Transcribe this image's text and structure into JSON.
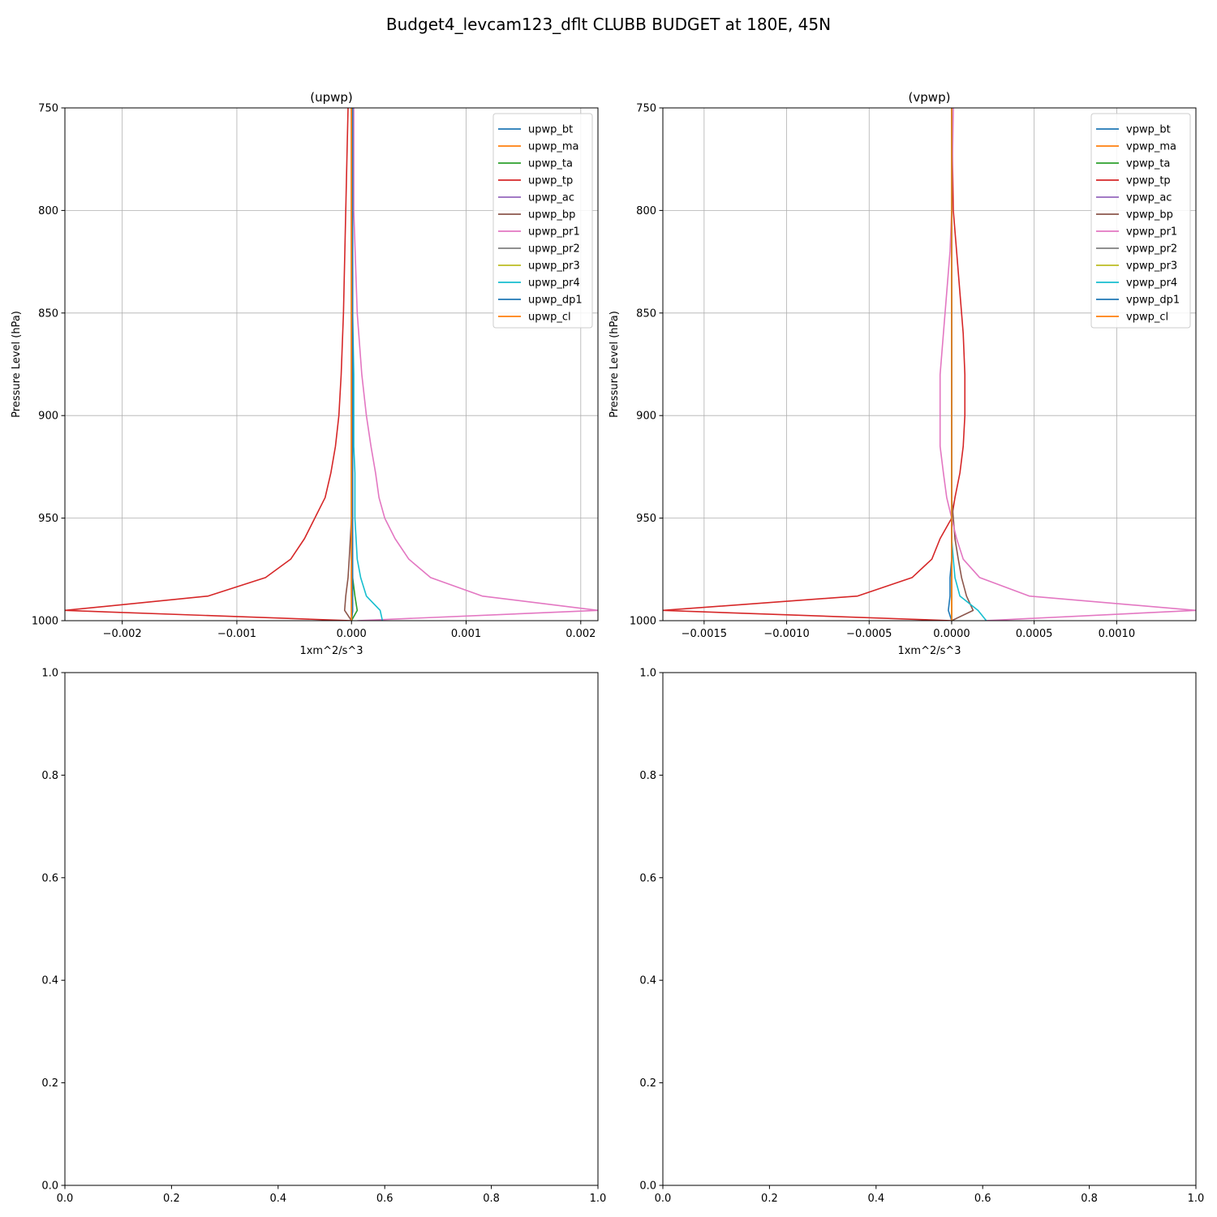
{
  "figure": {
    "title": "Budget4_levcam123_dflt CLUBB BUDGET at 180E, 45N"
  },
  "colors": [
    "#1f77b4",
    "#ff7f0e",
    "#2ca02c",
    "#d62728",
    "#9467bd",
    "#8c564b",
    "#e377c2",
    "#7f7f7f",
    "#bcbd22",
    "#17becf",
    "#1f77b4",
    "#ff7f0e"
  ],
  "chart_data": [
    {
      "type": "line",
      "title": "(upwp)",
      "xlabel": "1xm^2/s^3",
      "ylabel": "Pressure Level (hPa)",
      "xlim": [
        -0.0025,
        0.00215
      ],
      "ylim": [
        1000,
        750
      ],
      "y_inverted": true,
      "xticks": [
        -0.002,
        -0.001,
        0.0,
        0.001,
        0.002
      ],
      "xtick_labels": [
        "−0.002",
        "−0.001",
        "0.000",
        "0.001",
        "0.002"
      ],
      "yticks": [
        750,
        800,
        850,
        900,
        950,
        1000
      ],
      "ytick_labels": [
        "750",
        "800",
        "850",
        "900",
        "950",
        "1000"
      ],
      "grid": true,
      "legend_position": "top-right",
      "levels": [
        750,
        800,
        850,
        880,
        900,
        915,
        928,
        940,
        950,
        960,
        970,
        979,
        988,
        995,
        1000
      ],
      "series": [
        {
          "name": "upwp_bt",
          "values": [
            0,
            0,
            0,
            0,
            0,
            0,
            0,
            0,
            0,
            0,
            0,
            0,
            0,
            1e-05,
            0
          ]
        },
        {
          "name": "upwp_ma",
          "values": [
            0,
            0,
            0,
            0,
            0,
            0,
            0,
            0,
            0,
            0,
            0,
            0,
            0,
            0,
            0
          ]
        },
        {
          "name": "upwp_ta",
          "values": [
            0,
            0,
            0,
            0,
            0,
            0,
            0,
            0,
            0,
            0,
            0,
            1e-05,
            3e-05,
            5e-05,
            0
          ]
        },
        {
          "name": "upwp_tp",
          "values": [
            -3e-05,
            -5e-05,
            -7e-05,
            -9e-05,
            -0.00011,
            -0.00014,
            -0.00018,
            -0.00023,
            -0.00032,
            -0.00041,
            -0.00053,
            -0.00075,
            -0.00125,
            -0.0025,
            0
          ]
        },
        {
          "name": "upwp_ac",
          "values": [
            0,
            0,
            0,
            0,
            0,
            0,
            0,
            0,
            0,
            0,
            0,
            0,
            0,
            0,
            0
          ]
        },
        {
          "name": "upwp_bp",
          "values": [
            0,
            0,
            0,
            0,
            0,
            0,
            0,
            0,
            0,
            -1e-05,
            -2e-05,
            -3e-05,
            -5e-05,
            -6e-05,
            0
          ]
        },
        {
          "name": "upwp_pr1",
          "values": [
            2e-05,
            2e-05,
            5e-05,
            9e-05,
            0.00013,
            0.00017,
            0.00021,
            0.00024,
            0.00029,
            0.00038,
            0.0005,
            0.00069,
            0.00114,
            0.00215,
            5e-05
          ]
        },
        {
          "name": "upwp_pr2",
          "values": [
            0,
            0,
            0,
            0,
            0,
            0,
            0,
            0,
            0,
            0,
            0,
            0,
            0,
            0,
            0
          ]
        },
        {
          "name": "upwp_pr3",
          "values": [
            0,
            0,
            0,
            0,
            0,
            0,
            0,
            0,
            0,
            0,
            0,
            0,
            0,
            0,
            0
          ]
        },
        {
          "name": "upwp_pr4",
          "values": [
            1e-05,
            1e-05,
            1e-05,
            2e-05,
            2e-05,
            2e-05,
            3e-05,
            3e-05,
            3e-05,
            4e-05,
            5e-05,
            8e-05,
            0.00013,
            0.00025,
            0.00027
          ]
        },
        {
          "name": "upwp_dp1",
          "values": [
            1e-05,
            1e-05,
            1e-05,
            1e-05,
            1e-05,
            1e-05,
            1e-05,
            1e-05,
            1e-05,
            1e-05,
            1e-05,
            1e-05,
            1e-05,
            1e-05,
            0
          ]
        },
        {
          "name": "upwp_cl",
          "values": [
            0,
            0,
            0,
            0,
            0,
            0,
            0,
            0,
            0,
            0,
            0,
            0,
            0,
            0,
            0
          ]
        }
      ]
    },
    {
      "type": "line",
      "title": "(vpwp)",
      "xlabel": "1xm^2/s^3",
      "ylabel": "Pressure Level (hPa)",
      "xlim": [
        -0.00175,
        0.00148
      ],
      "ylim": [
        1000,
        750
      ],
      "y_inverted": true,
      "xticks": [
        -0.0015,
        -0.001,
        -0.0005,
        0.0,
        0.0005,
        0.001
      ],
      "xtick_labels": [
        "−0.0015",
        "−0.0010",
        "−0.0005",
        "0.0000",
        "0.0005",
        "0.0010"
      ],
      "yticks": [
        750,
        800,
        850,
        900,
        950,
        1000
      ],
      "ytick_labels": [
        "750",
        "800",
        "850",
        "900",
        "950",
        "1000"
      ],
      "grid": true,
      "legend_position": "top-right",
      "levels": [
        750,
        800,
        820,
        840,
        860,
        880,
        900,
        915,
        928,
        940,
        950,
        960,
        970,
        979,
        988,
        995,
        1000
      ],
      "series": [
        {
          "name": "vpwp_bt",
          "values": [
            0,
            0,
            0,
            0,
            0,
            0,
            0,
            0,
            0,
            0,
            0,
            0,
            0,
            0,
            0,
            0,
            0
          ]
        },
        {
          "name": "vpwp_ma",
          "values": [
            0,
            0,
            0,
            0,
            0,
            0,
            0,
            0,
            0,
            0,
            0,
            0,
            0,
            0,
            0,
            0,
            0
          ]
        },
        {
          "name": "vpwp_ta",
          "values": [
            0,
            0,
            0,
            0,
            0,
            0,
            0,
            0,
            0,
            0,
            0,
            0,
            0,
            0,
            0,
            0,
            0
          ]
        },
        {
          "name": "vpwp_tp",
          "values": [
            0,
            1e-05,
            3e-05,
            5e-05,
            7e-05,
            8e-05,
            8e-05,
            7e-05,
            5e-05,
            2e-05,
            0,
            -7e-05,
            -0.00012,
            -0.00024,
            -0.00057,
            -0.00175,
            0
          ]
        },
        {
          "name": "vpwp_ac",
          "values": [
            0,
            0,
            0,
            0,
            0,
            0,
            0,
            0,
            0,
            0,
            0,
            0,
            0,
            0,
            0,
            0,
            0
          ]
        },
        {
          "name": "vpwp_bp",
          "values": [
            0,
            0,
            0,
            0,
            0,
            0,
            0,
            0,
            0,
            0,
            1e-05,
            2e-05,
            4e-05,
            6e-05,
            9e-05,
            0.00013,
            0
          ]
        },
        {
          "name": "vpwp_pr1",
          "values": [
            1e-05,
            0,
            -1e-05,
            -3e-05,
            -5e-05,
            -7e-05,
            -7e-05,
            -7e-05,
            -5e-05,
            -3e-05,
            0,
            3e-05,
            7e-05,
            0.00017,
            0.00047,
            0.00148,
            0.0002
          ]
        },
        {
          "name": "vpwp_pr2",
          "values": [
            0,
            0,
            0,
            0,
            0,
            0,
            0,
            0,
            0,
            0,
            0,
            0,
            0,
            0,
            0,
            0,
            0
          ]
        },
        {
          "name": "vpwp_pr3",
          "values": [
            0,
            0,
            0,
            0,
            0,
            0,
            0,
            0,
            0,
            0,
            0,
            0,
            0,
            0,
            0,
            0,
            0
          ]
        },
        {
          "name": "vpwp_pr4",
          "values": [
            0,
            0,
            0,
            0,
            0,
            0,
            0,
            0,
            0,
            0,
            0,
            0,
            1e-05,
            2e-05,
            5e-05,
            0.00016,
            0.00021
          ]
        },
        {
          "name": "vpwp_dp1",
          "values": [
            0,
            0,
            0,
            0,
            0,
            0,
            0,
            0,
            0,
            0,
            0,
            0,
            0,
            -1e-05,
            -1e-05,
            -2e-05,
            0
          ]
        },
        {
          "name": "vpwp_cl",
          "values": [
            0,
            0,
            0,
            0,
            0,
            0,
            0,
            0,
            0,
            0,
            0,
            0,
            0,
            0,
            0,
            0,
            0
          ]
        }
      ]
    },
    {
      "type": "line",
      "title": "",
      "xlim": [
        0,
        1
      ],
      "ylim": [
        0,
        1
      ],
      "xticks": [
        0,
        0.2,
        0.4,
        0.6,
        0.8,
        1.0
      ],
      "xtick_labels": [
        "0.0",
        "0.2",
        "0.4",
        "0.6",
        "0.8",
        "1.0"
      ],
      "yticks": [
        0,
        0.2,
        0.4,
        0.6,
        0.8,
        1.0
      ],
      "ytick_labels": [
        "0.0",
        "0.2",
        "0.4",
        "0.6",
        "0.8",
        "1.0"
      ],
      "grid": false,
      "series": []
    },
    {
      "type": "line",
      "title": "",
      "xlim": [
        0,
        1
      ],
      "ylim": [
        0,
        1
      ],
      "xticks": [
        0,
        0.2,
        0.4,
        0.6,
        0.8,
        1.0
      ],
      "xtick_labels": [
        "0.0",
        "0.2",
        "0.4",
        "0.6",
        "0.8",
        "1.0"
      ],
      "yticks": [
        0,
        0.2,
        0.4,
        0.6,
        0.8,
        1.0
      ],
      "ytick_labels": [
        "0.0",
        "0.2",
        "0.4",
        "0.6",
        "0.8",
        "1.0"
      ],
      "grid": false,
      "series": []
    }
  ]
}
